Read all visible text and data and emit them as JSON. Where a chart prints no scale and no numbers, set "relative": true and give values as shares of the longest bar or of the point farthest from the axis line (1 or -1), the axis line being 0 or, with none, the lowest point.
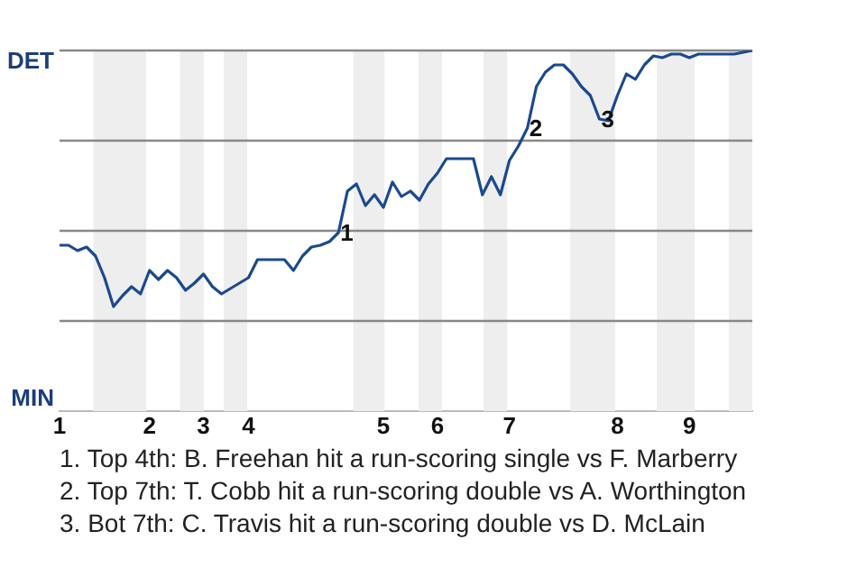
{
  "chart_data": {
    "type": "line",
    "relative": true,
    "categories": [
      "1",
      null,
      null,
      null,
      null,
      null,
      null,
      null,
      null,
      null,
      "2",
      null,
      null,
      null,
      null,
      null,
      "3",
      null,
      null,
      null,
      null,
      "4",
      null,
      null,
      null,
      null,
      null,
      null,
      null,
      null,
      null,
      null,
      null,
      null,
      null,
      null,
      "5",
      null,
      null,
      null,
      null,
      null,
      "6",
      null,
      null,
      null,
      null,
      null,
      null,
      null,
      "7",
      null,
      null,
      null,
      null,
      null,
      null,
      null,
      null,
      null,
      null,
      null,
      "8",
      null,
      null,
      null,
      null,
      null,
      null,
      null,
      "9",
      null,
      null,
      null,
      null,
      null,
      null,
      null
    ],
    "series": [
      {
        "color": "#1a4a8f",
        "values": [
          0.46,
          0.46,
          0.445,
          0.455,
          0.43,
          0.37,
          0.29,
          0.32,
          0.345,
          0.325,
          0.39,
          0.365,
          0.39,
          0.37,
          0.335,
          0.355,
          0.38,
          0.345,
          0.325,
          0.34,
          0.355,
          0.37,
          0.42,
          0.42,
          0.42,
          0.42,
          0.39,
          0.43,
          0.455,
          0.46,
          0.47,
          0.495,
          0.61,
          0.63,
          0.57,
          0.6,
          0.565,
          0.635,
          0.595,
          0.61,
          0.585,
          0.63,
          0.66,
          0.7,
          0.7,
          0.7,
          0.7,
          0.6,
          0.65,
          0.6,
          0.695,
          0.735,
          0.785,
          0.9,
          0.94,
          0.96,
          0.96,
          0.935,
          0.9,
          0.875,
          0.81,
          0.805,
          0.875,
          0.935,
          0.92,
          0.96,
          0.985,
          0.98,
          0.99,
          0.99,
          0.98,
          0.99,
          0.99,
          0.99,
          0.99,
          0.99,
          0.995,
          1
        ]
      }
    ],
    "legend": false,
    "marker": "none",
    "line_style": "solid",
    "ref_lines": [
      {
        "axis": "y",
        "value": 0.25,
        "color": "#888888"
      },
      {
        "axis": "y",
        "value": 0.5,
        "color": "#888888"
      },
      {
        "axis": "y",
        "value": 0.75,
        "color": "#888888"
      },
      {
        "axis": "y",
        "value": 1,
        "color": "#888888"
      }
    ],
    "annotations": [
      "DET",
      "MIN",
      {
        "text": "1",
        "y": 0.495
      },
      {
        "text": "2",
        "y": 0.785
      },
      {
        "text": "3",
        "y": 0.81
      },
      "1. Top 4th: B. Freehan hit a run-scoring single vs F. Marberry",
      "2. Top 7th: T. Cobb hit a run-scoring double vs A. Worthington",
      "3. Bot 7th: C. Travis hit a run-scoring double vs D. McLain"
    ]
  }
}
